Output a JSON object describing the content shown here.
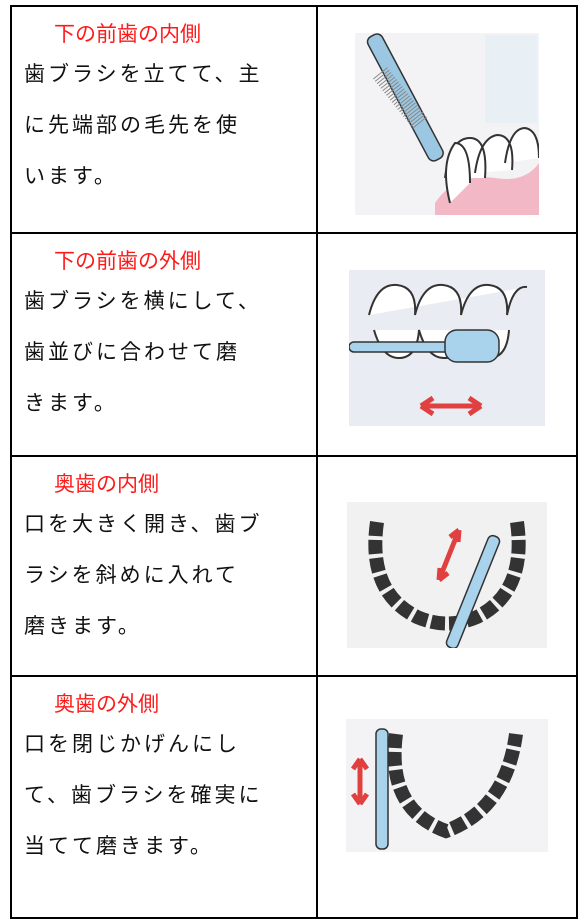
{
  "table": {
    "rows": [
      {
        "heading": "下の前歯の内側",
        "lines": [
          "歯ブラシを立てて、主",
          "に先端部の毛先を使",
          "います。"
        ]
      },
      {
        "heading": "下の前歯の外側",
        "lines": [
          "歯ブラシを横にして、",
          "歯並びに合わせて磨",
          "きます。"
        ]
      },
      {
        "heading": "奥歯の内側",
        "lines": [
          "口を大きく開き、歯ブ",
          "ラシを斜めに入れて",
          "磨きます。"
        ]
      },
      {
        "heading": "奥歯の外側",
        "lines": [
          "口を閉じかげんにし",
          "て、歯ブラシを確実に",
          "当てて磨きます。"
        ]
      }
    ]
  }
}
